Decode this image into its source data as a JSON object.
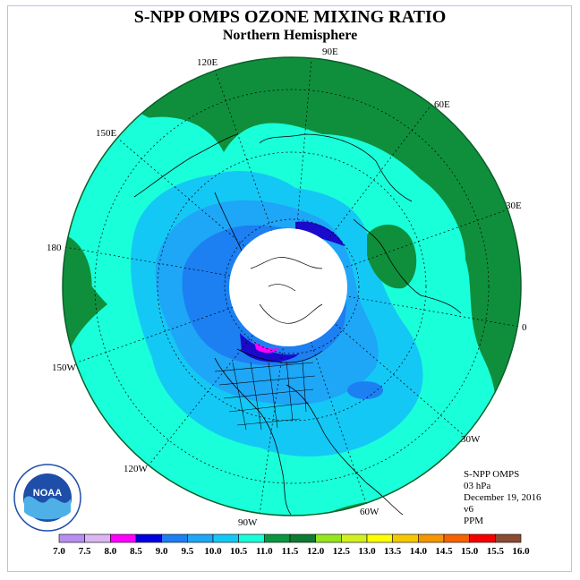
{
  "header": {
    "title": "S-NPP OMPS OZONE MIXING RATIO",
    "subtitle": "Northern Hemisphere"
  },
  "longitude_labels": [
    "90E",
    "60E",
    "30E",
    "0",
    "30W",
    "60W",
    "90W",
    "120W",
    "150W",
    "180",
    "150E",
    "120E"
  ],
  "info": {
    "instrument": "S-NPP OMPS",
    "level": "03 hPa",
    "date": "December 19, 2016",
    "version": "v6",
    "units": "PPM"
  },
  "logo": {
    "text": "NOAA"
  },
  "colorbar": {
    "colors": [
      "#b98ef2",
      "#dab6f2",
      "#ff00ff",
      "#0000e0",
      "#1c7ff2",
      "#1ea6f7",
      "#14c8f5",
      "#19ffd9",
      "#0a9641",
      "#0f7a32",
      "#96e61e",
      "#d2f01e",
      "#ffff00",
      "#f5c800",
      "#f59600",
      "#f56400",
      "#f50000",
      "#8b4a32"
    ],
    "tick_labels": [
      "7.0",
      "7.5",
      "8.0",
      "8.5",
      "9.0",
      "9.5",
      "10.0",
      "10.5",
      "11.0",
      "11.5",
      "12.0",
      "12.5",
      "13.0",
      "13.5",
      "14.0",
      "14.5",
      "15.0",
      "15.5",
      "16.0"
    ]
  },
  "colors": {
    "low_ozone_pink": "#ff00ff",
    "navy": "#1a0acc",
    "deep_blue": "#1c7ff2",
    "mid_blue": "#1ea6f7",
    "light_blue": "#14c8f5",
    "aqua": "#19ffd9",
    "green": "#0f8f3c",
    "pole_mask": "#ffffff"
  }
}
